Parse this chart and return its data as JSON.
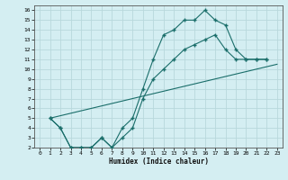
{
  "xlabel": "Humidex (Indice chaleur)",
  "bg_color": "#d4eef2",
  "grid_color": "#b8d8dc",
  "line_color": "#1a6e6a",
  "xlim": [
    -0.5,
    23.5
  ],
  "ylim": [
    2,
    16.5
  ],
  "xticks": [
    0,
    1,
    2,
    3,
    4,
    5,
    6,
    7,
    8,
    9,
    10,
    11,
    12,
    13,
    14,
    15,
    16,
    17,
    18,
    19,
    20,
    21,
    22,
    23
  ],
  "yticks": [
    2,
    3,
    4,
    5,
    6,
    7,
    8,
    9,
    10,
    11,
    12,
    13,
    14,
    15,
    16
  ],
  "line1_x": [
    1,
    2,
    3,
    4,
    5,
    6,
    7,
    8,
    9,
    10,
    11,
    12,
    13,
    14,
    15,
    16,
    17,
    18,
    19,
    20,
    21,
    22
  ],
  "line1_y": [
    5,
    4,
    2,
    2,
    2,
    3,
    2,
    4,
    5,
    8,
    11,
    13.5,
    14,
    15,
    15,
    16,
    15,
    14.5,
    12,
    11,
    11,
    11
  ],
  "line2_x": [
    1,
    2,
    3,
    4,
    5,
    6,
    7,
    8,
    9,
    10,
    11,
    12,
    13,
    14,
    15,
    16,
    17,
    18,
    19,
    20,
    21,
    22
  ],
  "line2_y": [
    5,
    4,
    2,
    2,
    2,
    3,
    2,
    3,
    4,
    7,
    9,
    10,
    11,
    12,
    12.5,
    13,
    13.5,
    12,
    11,
    11,
    11,
    11
  ],
  "line3_x": [
    1,
    23
  ],
  "line3_y": [
    5,
    10.5
  ]
}
